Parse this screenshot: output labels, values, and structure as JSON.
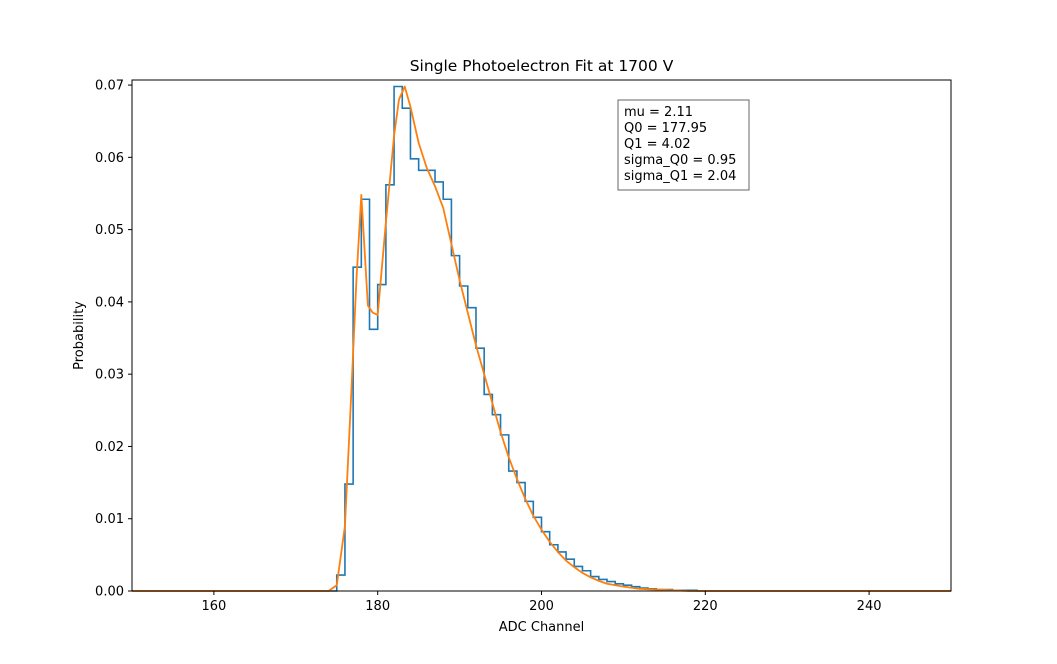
{
  "chart_data": {
    "type": "line",
    "title": "Single Photoelectron Fit at 1700 V",
    "xlabel": "ADC Channel",
    "ylabel": "Probability",
    "xlim": [
      150,
      250
    ],
    "ylim": [
      0,
      0.0707
    ],
    "xticks": [
      160,
      180,
      200,
      220,
      240
    ],
    "xtick_labels": [
      "160",
      "180",
      "200",
      "220",
      "240"
    ],
    "yticks": [
      0.0,
      0.01,
      0.02,
      0.03,
      0.04,
      0.05,
      0.06,
      0.07
    ],
    "ytick_labels": [
      "0.00",
      "0.01",
      "0.02",
      "0.03",
      "0.04",
      "0.05",
      "0.06",
      "0.07"
    ],
    "grid": false,
    "series": [
      {
        "style": "step-histogram",
        "color": "#1f77b4",
        "bin_edges": [
          150,
          175,
          176,
          177,
          178,
          179,
          180,
          181,
          182,
          183,
          184,
          185,
          186,
          187,
          188,
          189,
          190,
          191,
          192,
          193,
          194,
          195,
          196,
          197,
          198,
          199,
          200,
          201,
          202,
          203,
          204,
          205,
          206,
          207,
          208,
          209,
          210,
          211,
          212,
          213,
          214,
          215,
          216,
          217,
          218,
          219,
          220,
          250
        ],
        "values": [
          0.0,
          0.0022,
          0.0148,
          0.0448,
          0.0542,
          0.0362,
          0.0424,
          0.0562,
          0.0698,
          0.0668,
          0.0598,
          0.0582,
          0.0582,
          0.0566,
          0.0542,
          0.0464,
          0.0422,
          0.0392,
          0.0336,
          0.0272,
          0.0244,
          0.0216,
          0.0166,
          0.015,
          0.0124,
          0.0102,
          0.0082,
          0.0064,
          0.0054,
          0.0044,
          0.0034,
          0.0028,
          0.002,
          0.0016,
          0.0013,
          0.001,
          0.0008,
          0.0006,
          0.0004,
          0.0003,
          0.0002,
          0.0002,
          0.0001,
          0.0001,
          0.0001,
          0.0,
          0.0
        ]
      },
      {
        "style": "line",
        "color": "#ff7f0e",
        "x": [
          150,
          174,
          175,
          176,
          176.8,
          177.4,
          178,
          178.8,
          179.4,
          180,
          181,
          182,
          182.6,
          183.3,
          184,
          185,
          186,
          187,
          188,
          189,
          190,
          191,
          192,
          193,
          194,
          195,
          196,
          197,
          198,
          199,
          200,
          201,
          202,
          203,
          204,
          205,
          206,
          207,
          208,
          210,
          212,
          214,
          216,
          218,
          220,
          250
        ],
        "y": [
          0.0,
          0.0,
          0.0008,
          0.009,
          0.028,
          0.043,
          0.0548,
          0.0395,
          0.0385,
          0.0382,
          0.051,
          0.063,
          0.068,
          0.0698,
          0.067,
          0.062,
          0.0585,
          0.056,
          0.053,
          0.048,
          0.043,
          0.0385,
          0.034,
          0.03,
          0.026,
          0.022,
          0.0185,
          0.0155,
          0.0128,
          0.0104,
          0.0085,
          0.0068,
          0.0054,
          0.0042,
          0.0033,
          0.0025,
          0.0019,
          0.0014,
          0.001,
          0.0006,
          0.0003,
          0.0002,
          0.0001,
          0.0,
          0.0,
          0.0
        ]
      }
    ],
    "annotation": {
      "placement": "upper-right",
      "lines": [
        "mu = 2.11",
        "Q0 = 177.95",
        "Q1 = 4.02",
        "sigma_Q0 = 0.95",
        "sigma_Q1 = 2.04"
      ]
    }
  }
}
